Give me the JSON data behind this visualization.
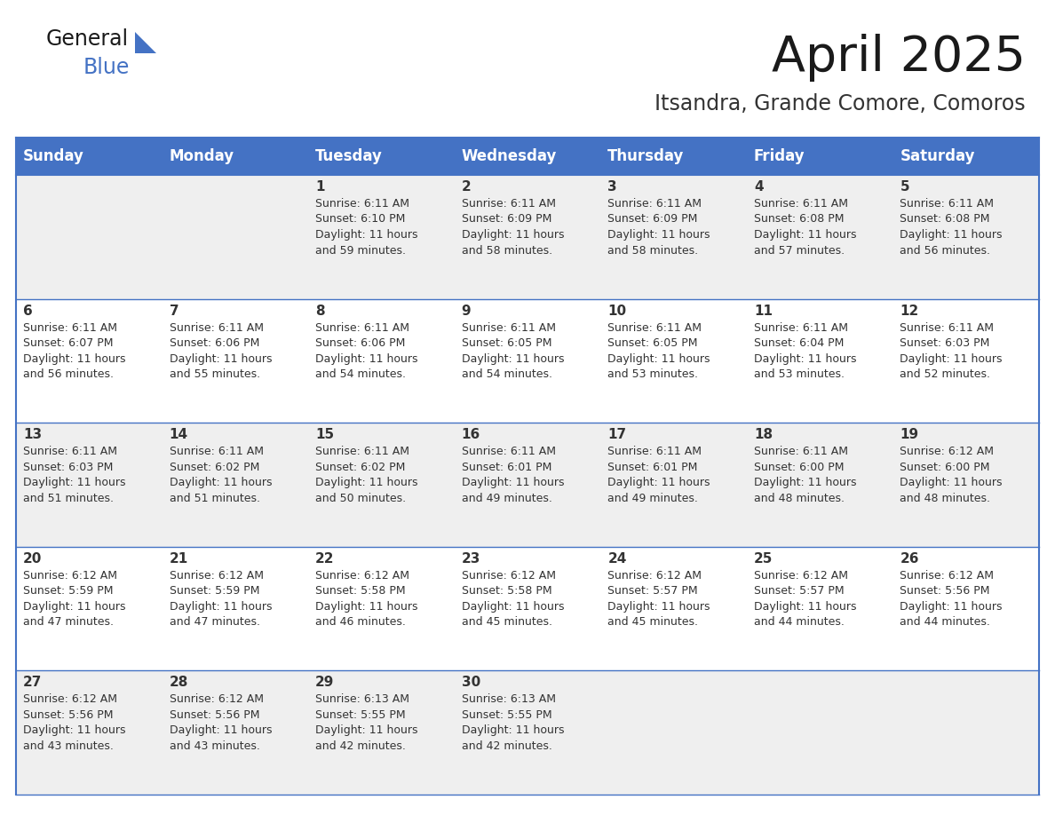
{
  "title": "April 2025",
  "subtitle": "Itsandra, Grande Comore, Comoros",
  "header_color": "#4472C4",
  "header_text_color": "#FFFFFF",
  "background_color": "#FFFFFF",
  "cell_bg_odd": "#EFEFEF",
  "cell_bg_even": "#FFFFFF",
  "day_headers": [
    "Sunday",
    "Monday",
    "Tuesday",
    "Wednesday",
    "Thursday",
    "Friday",
    "Saturday"
  ],
  "title_color": "#1a1a1a",
  "subtitle_color": "#333333",
  "text_color": "#333333",
  "line_color": "#4472C4",
  "weeks": [
    [
      {
        "day": "",
        "info": ""
      },
      {
        "day": "",
        "info": ""
      },
      {
        "day": "1",
        "info": "Sunrise: 6:11 AM\nSunset: 6:10 PM\nDaylight: 11 hours\nand 59 minutes."
      },
      {
        "day": "2",
        "info": "Sunrise: 6:11 AM\nSunset: 6:09 PM\nDaylight: 11 hours\nand 58 minutes."
      },
      {
        "day": "3",
        "info": "Sunrise: 6:11 AM\nSunset: 6:09 PM\nDaylight: 11 hours\nand 58 minutes."
      },
      {
        "day": "4",
        "info": "Sunrise: 6:11 AM\nSunset: 6:08 PM\nDaylight: 11 hours\nand 57 minutes."
      },
      {
        "day": "5",
        "info": "Sunrise: 6:11 AM\nSunset: 6:08 PM\nDaylight: 11 hours\nand 56 minutes."
      }
    ],
    [
      {
        "day": "6",
        "info": "Sunrise: 6:11 AM\nSunset: 6:07 PM\nDaylight: 11 hours\nand 56 minutes."
      },
      {
        "day": "7",
        "info": "Sunrise: 6:11 AM\nSunset: 6:06 PM\nDaylight: 11 hours\nand 55 minutes."
      },
      {
        "day": "8",
        "info": "Sunrise: 6:11 AM\nSunset: 6:06 PM\nDaylight: 11 hours\nand 54 minutes."
      },
      {
        "day": "9",
        "info": "Sunrise: 6:11 AM\nSunset: 6:05 PM\nDaylight: 11 hours\nand 54 minutes."
      },
      {
        "day": "10",
        "info": "Sunrise: 6:11 AM\nSunset: 6:05 PM\nDaylight: 11 hours\nand 53 minutes."
      },
      {
        "day": "11",
        "info": "Sunrise: 6:11 AM\nSunset: 6:04 PM\nDaylight: 11 hours\nand 53 minutes."
      },
      {
        "day": "12",
        "info": "Sunrise: 6:11 AM\nSunset: 6:03 PM\nDaylight: 11 hours\nand 52 minutes."
      }
    ],
    [
      {
        "day": "13",
        "info": "Sunrise: 6:11 AM\nSunset: 6:03 PM\nDaylight: 11 hours\nand 51 minutes."
      },
      {
        "day": "14",
        "info": "Sunrise: 6:11 AM\nSunset: 6:02 PM\nDaylight: 11 hours\nand 51 minutes."
      },
      {
        "day": "15",
        "info": "Sunrise: 6:11 AM\nSunset: 6:02 PM\nDaylight: 11 hours\nand 50 minutes."
      },
      {
        "day": "16",
        "info": "Sunrise: 6:11 AM\nSunset: 6:01 PM\nDaylight: 11 hours\nand 49 minutes."
      },
      {
        "day": "17",
        "info": "Sunrise: 6:11 AM\nSunset: 6:01 PM\nDaylight: 11 hours\nand 49 minutes."
      },
      {
        "day": "18",
        "info": "Sunrise: 6:11 AM\nSunset: 6:00 PM\nDaylight: 11 hours\nand 48 minutes."
      },
      {
        "day": "19",
        "info": "Sunrise: 6:12 AM\nSunset: 6:00 PM\nDaylight: 11 hours\nand 48 minutes."
      }
    ],
    [
      {
        "day": "20",
        "info": "Sunrise: 6:12 AM\nSunset: 5:59 PM\nDaylight: 11 hours\nand 47 minutes."
      },
      {
        "day": "21",
        "info": "Sunrise: 6:12 AM\nSunset: 5:59 PM\nDaylight: 11 hours\nand 47 minutes."
      },
      {
        "day": "22",
        "info": "Sunrise: 6:12 AM\nSunset: 5:58 PM\nDaylight: 11 hours\nand 46 minutes."
      },
      {
        "day": "23",
        "info": "Sunrise: 6:12 AM\nSunset: 5:58 PM\nDaylight: 11 hours\nand 45 minutes."
      },
      {
        "day": "24",
        "info": "Sunrise: 6:12 AM\nSunset: 5:57 PM\nDaylight: 11 hours\nand 45 minutes."
      },
      {
        "day": "25",
        "info": "Sunrise: 6:12 AM\nSunset: 5:57 PM\nDaylight: 11 hours\nand 44 minutes."
      },
      {
        "day": "26",
        "info": "Sunrise: 6:12 AM\nSunset: 5:56 PM\nDaylight: 11 hours\nand 44 minutes."
      }
    ],
    [
      {
        "day": "27",
        "info": "Sunrise: 6:12 AM\nSunset: 5:56 PM\nDaylight: 11 hours\nand 43 minutes."
      },
      {
        "day": "28",
        "info": "Sunrise: 6:12 AM\nSunset: 5:56 PM\nDaylight: 11 hours\nand 43 minutes."
      },
      {
        "day": "29",
        "info": "Sunrise: 6:13 AM\nSunset: 5:55 PM\nDaylight: 11 hours\nand 42 minutes."
      },
      {
        "day": "30",
        "info": "Sunrise: 6:13 AM\nSunset: 5:55 PM\nDaylight: 11 hours\nand 42 minutes."
      },
      {
        "day": "",
        "info": ""
      },
      {
        "day": "",
        "info": ""
      },
      {
        "day": "",
        "info": ""
      }
    ]
  ]
}
